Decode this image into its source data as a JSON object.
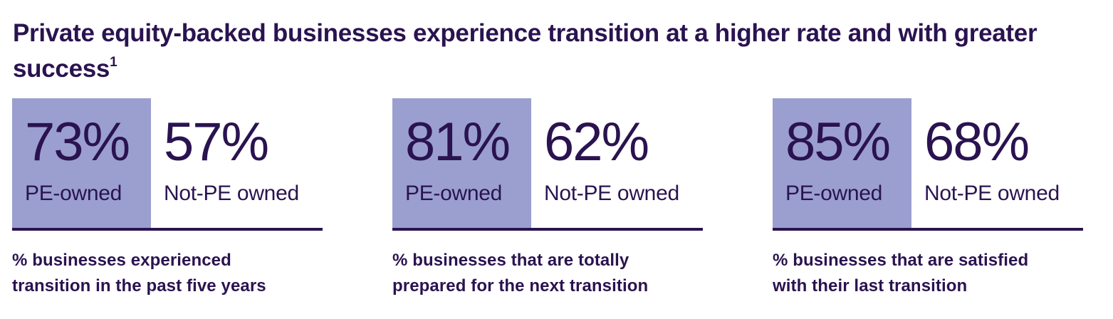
{
  "title": {
    "text": "Private equity-backed businesses experience transition at a higher rate and with greater success",
    "footnote": "1"
  },
  "colors": {
    "text": "#2a1350",
    "pe_box": "#9a9fcf",
    "background": "#ffffff"
  },
  "chart_data": [
    {
      "type": "bar",
      "categories": [
        "PE-owned",
        "Not-PE owned"
      ],
      "values": [
        73,
        57
      ],
      "value_labels": [
        "73%",
        "57%"
      ],
      "description_lines": [
        "% businesses experienced",
        "transition in the past five years"
      ]
    },
    {
      "type": "bar",
      "categories": [
        "PE-owned",
        "Not-PE owned"
      ],
      "values": [
        81,
        62
      ],
      "value_labels": [
        "81%",
        "62%"
      ],
      "description_lines": [
        "% businesses that are totally",
        "prepared for the next transition"
      ]
    },
    {
      "type": "bar",
      "categories": [
        "PE-owned",
        "Not-PE owned"
      ],
      "values": [
        85,
        68
      ],
      "value_labels": [
        "85%",
        "68%"
      ],
      "description_lines": [
        "% businesses that are satisfied",
        "with their last transition"
      ]
    }
  ]
}
